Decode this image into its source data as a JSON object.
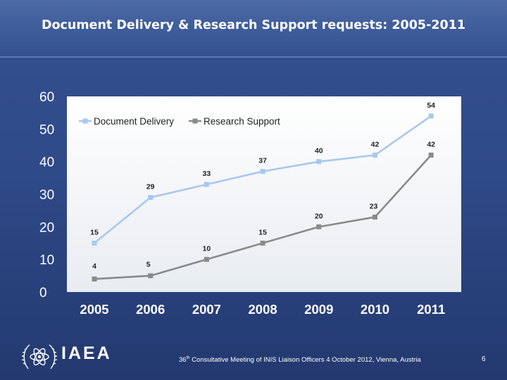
{
  "slide": {
    "title": "Document Delivery & Research Support requests: 2005-2011",
    "footer_ordinal": "36",
    "footer_sup": "th",
    "footer_rest": " Consultative Meeting of INIS Liaison Officers 4 October 2012, Vienna, Austria",
    "page_number": "6",
    "logo_text": "IAEA"
  },
  "colors": {
    "document_delivery": "#a7c8f0",
    "research_support": "#8a8a8a",
    "plot_background": "#ffffff",
    "axis_text": "#ffffff"
  },
  "chart_data": {
    "type": "line",
    "title": "",
    "xlabel": "",
    "ylabel": "",
    "categories": [
      "2005",
      "2006",
      "2007",
      "2008",
      "2009",
      "2010",
      "2011"
    ],
    "ylim": [
      0,
      60
    ],
    "yticks": [
      0,
      10,
      20,
      30,
      40,
      50,
      60
    ],
    "grid": false,
    "legend_position": "top-left",
    "data_labels": true,
    "series": [
      {
        "name": "Document Delivery",
        "values": [
          15,
          29,
          33,
          37,
          40,
          42,
          54
        ],
        "color": "#a7c8f0"
      },
      {
        "name": "Research Support",
        "values": [
          4,
          5,
          10,
          15,
          20,
          23,
          42
        ],
        "color": "#8a8a8a"
      }
    ]
  }
}
